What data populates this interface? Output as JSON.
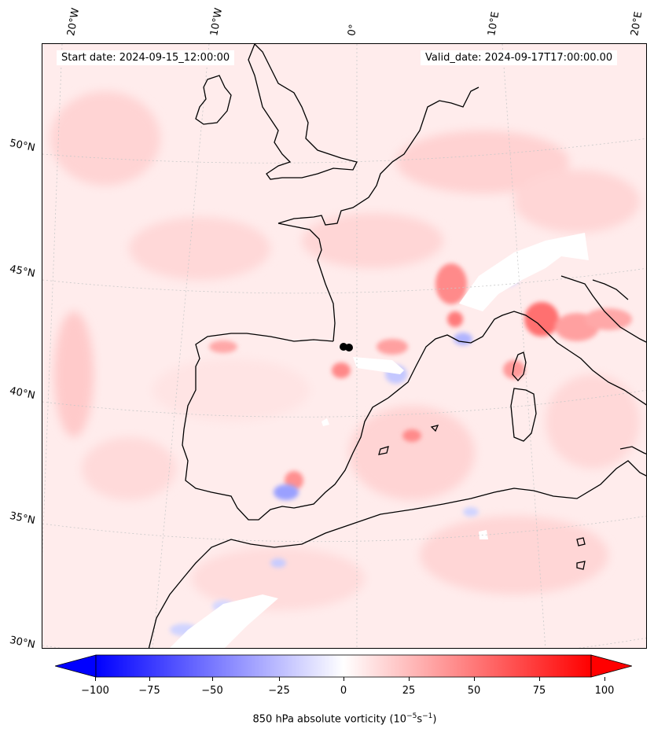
{
  "map": {
    "start_date": "Start date: 2024-09-15_12:00:00",
    "valid_date": "Valid_date: 2024-09-17T17:00:00.00",
    "lon_labels": [
      "20°W",
      "10°W",
      "0°",
      "10°E",
      "20°E"
    ],
    "lat_labels": [
      "50°N",
      "45°N",
      "40°N",
      "35°N",
      "30°N"
    ],
    "marker": "storm-center-dots"
  },
  "colorbar": {
    "ticks": [
      "−100",
      "−75",
      "−50",
      "−25",
      "0",
      "25",
      "50",
      "75",
      "100"
    ],
    "label_prefix": "850 hPa absolute vorticity (10",
    "label_exp1": "−5",
    "label_mid": "s",
    "label_exp2": "−1",
    "label_suffix": ")",
    "min_color": "#0000ff",
    "max_color": "#ff0000"
  }
}
